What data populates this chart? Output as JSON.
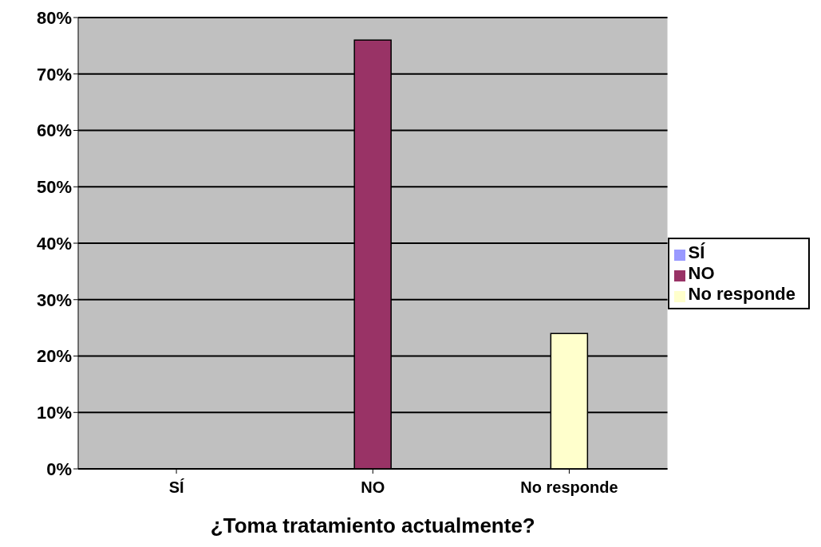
{
  "chart_data": {
    "type": "bar",
    "xlabel": "¿Toma tratamiento actualmente?",
    "categories": [
      "SÍ",
      "NO",
      "No responde"
    ],
    "series": [
      {
        "name": "SÍ",
        "color": "#9999ff",
        "values": [
          0,
          null,
          null
        ]
      },
      {
        "name": "NO",
        "color": "#993366",
        "values": [
          null,
          76,
          null
        ]
      },
      {
        "name": "No responde",
        "color": "#ffffcc",
        "values": [
          null,
          null,
          24
        ]
      }
    ],
    "ylim": [
      0,
      80
    ],
    "yticks": [
      {
        "value": 0,
        "label": "0%"
      },
      {
        "value": 10,
        "label": "10%"
      },
      {
        "value": 20,
        "label": "20%"
      },
      {
        "value": 30,
        "label": "30%"
      },
      {
        "value": 40,
        "label": "40%"
      },
      {
        "value": 50,
        "label": "50%"
      },
      {
        "value": 60,
        "label": "60%"
      },
      {
        "value": 70,
        "label": "70%"
      },
      {
        "value": 80,
        "label": "80%"
      }
    ],
    "grid": "y",
    "legend": "right"
  }
}
